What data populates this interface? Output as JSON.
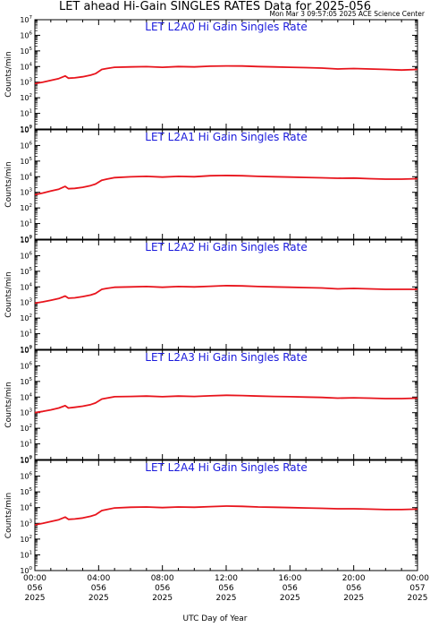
{
  "title": "LET ahead Hi-Gain SINGLES RATES Data for 2025-056",
  "timestamp": "Mon Mar  3 09:57:05 2025 ACE Science Center",
  "x_axis_label": "UTC Day of Year",
  "colors": {
    "series": "#e8141c",
    "panel_title": "#1a1adc",
    "axes": "#000000"
  },
  "chart_data": [
    {
      "type": "line",
      "title": "LET L2A0 Hi Gain Singles Rate",
      "ylabel": "Counts/min",
      "yscale": "log",
      "ylim": [
        1,
        10000000
      ],
      "xlim": [
        "2025-056 00:00",
        "2025-057 00:00"
      ],
      "x_hours": [
        0,
        0.5,
        1,
        1.5,
        1.9,
        2.1,
        2.5,
        3,
        3.5,
        3.8,
        4.2,
        4.5,
        5,
        6,
        7,
        8,
        9,
        10,
        11,
        12,
        13,
        14,
        15,
        16,
        17,
        18,
        19,
        20,
        21,
        22,
        23,
        24
      ],
      "values": [
        800,
        1000,
        1300,
        1700,
        2500,
        1800,
        1900,
        2200,
        2800,
        3500,
        6500,
        7500,
        9000,
        9500,
        9800,
        9000,
        10000,
        9500,
        10500,
        11000,
        10800,
        10000,
        9500,
        9000,
        8500,
        8000,
        7000,
        7500,
        7000,
        6500,
        6000,
        6500
      ]
    },
    {
      "type": "line",
      "title": "LET L2A1 Hi Gain Singles Rate",
      "ylabel": "Counts/min",
      "yscale": "log",
      "ylim": [
        1,
        10000000
      ],
      "xlim": [
        "2025-056 00:00",
        "2025-057 00:00"
      ],
      "x_hours": [
        0,
        0.5,
        1,
        1.5,
        1.9,
        2.1,
        2.5,
        3,
        3.5,
        3.8,
        4.2,
        4.5,
        5,
        6,
        7,
        8,
        9,
        10,
        11,
        12,
        13,
        14,
        15,
        16,
        17,
        18,
        19,
        20,
        21,
        22,
        23,
        24
      ],
      "values": [
        700,
        900,
        1200,
        1600,
        2400,
        1700,
        1800,
        2100,
        2700,
        3400,
        6000,
        7000,
        8800,
        9800,
        10500,
        9500,
        10500,
        10000,
        11500,
        12000,
        11500,
        10500,
        10000,
        9500,
        9000,
        8500,
        8000,
        8200,
        7500,
        7000,
        7000,
        7500
      ]
    },
    {
      "type": "line",
      "title": "LET L2A2 Hi Gain Singles Rate",
      "ylabel": "Counts/min",
      "yscale": "log",
      "ylim": [
        1,
        10000000
      ],
      "xlim": [
        "2025-056 00:00",
        "2025-057 00:00"
      ],
      "x_hours": [
        0,
        0.5,
        1,
        1.5,
        1.9,
        2.1,
        2.5,
        3,
        3.5,
        3.8,
        4.2,
        4.5,
        5,
        6,
        7,
        8,
        9,
        10,
        11,
        12,
        13,
        14,
        15,
        16,
        17,
        18,
        19,
        20,
        21,
        22,
        23,
        24
      ],
      "values": [
        900,
        1100,
        1400,
        1800,
        2600,
        1900,
        2000,
        2400,
        3000,
        3800,
        7000,
        8000,
        9500,
        10000,
        10500,
        9500,
        10500,
        10000,
        11000,
        12000,
        11500,
        10500,
        10000,
        9500,
        9000,
        8500,
        7500,
        8000,
        7500,
        7000,
        7000,
        7000
      ]
    },
    {
      "type": "line",
      "title": "LET L2A3 Hi Gain Singles Rate",
      "ylabel": "Counts/min",
      "yscale": "log",
      "ylim": [
        1,
        10000000
      ],
      "xlim": [
        "2025-056 00:00",
        "2025-057 00:00"
      ],
      "x_hours": [
        0,
        0.5,
        1,
        1.5,
        1.9,
        2.1,
        2.5,
        3,
        3.5,
        3.8,
        4.2,
        4.5,
        5,
        6,
        7,
        8,
        9,
        10,
        11,
        12,
        13,
        14,
        15,
        16,
        17,
        18,
        19,
        20,
        21,
        22,
        23,
        24
      ],
      "values": [
        1000,
        1200,
        1500,
        2000,
        2800,
        2000,
        2200,
        2600,
        3300,
        4200,
        7500,
        8500,
        10500,
        11000,
        11500,
        10500,
        11500,
        11000,
        12000,
        13000,
        12500,
        11500,
        11000,
        10500,
        10000,
        9500,
        8500,
        9000,
        8500,
        8000,
        8000,
        8500
      ]
    },
    {
      "type": "line",
      "title": "LET L2A4 Hi Gain Singles Rate",
      "ylabel": "Counts/min",
      "yscale": "log",
      "ylim": [
        1,
        10000000
      ],
      "xlim": [
        "2025-056 00:00",
        "2025-057 00:00"
      ],
      "x_hours": [
        0,
        0.5,
        1,
        1.5,
        1.9,
        2.1,
        2.5,
        3,
        3.5,
        3.8,
        4.2,
        4.5,
        5,
        6,
        7,
        8,
        9,
        10,
        11,
        12,
        13,
        14,
        15,
        16,
        17,
        18,
        19,
        20,
        21,
        22,
        23,
        24
      ],
      "values": [
        800,
        1000,
        1300,
        1700,
        2500,
        1800,
        1900,
        2200,
        2800,
        3500,
        6500,
        7500,
        9500,
        10500,
        11000,
        10000,
        11000,
        10500,
        11500,
        12500,
        12000,
        11000,
        10500,
        10000,
        9500,
        9000,
        8500,
        8500,
        8000,
        7500,
        7500,
        8000
      ]
    }
  ],
  "y_tick_labels": [
    {
      "base": "10",
      "exp": "0"
    },
    {
      "base": "10",
      "exp": "1"
    },
    {
      "base": "10",
      "exp": "2"
    },
    {
      "base": "10",
      "exp": "3"
    },
    {
      "base": "10",
      "exp": "4"
    },
    {
      "base": "10",
      "exp": "5"
    },
    {
      "base": "10",
      "exp": "6"
    },
    {
      "base": "10",
      "exp": "7"
    }
  ],
  "x_tick_labels": [
    {
      "time": "00:00",
      "day": "056",
      "year": "2025"
    },
    {
      "time": "04:00",
      "day": "056",
      "year": "2025"
    },
    {
      "time": "08:00",
      "day": "056",
      "year": "2025"
    },
    {
      "time": "12:00",
      "day": "056",
      "year": "2025"
    },
    {
      "time": "16:00",
      "day": "056",
      "year": "2025"
    },
    {
      "time": "20:00",
      "day": "056",
      "year": "2025"
    },
    {
      "time": "00:00",
      "day": "057",
      "year": "2025"
    }
  ]
}
